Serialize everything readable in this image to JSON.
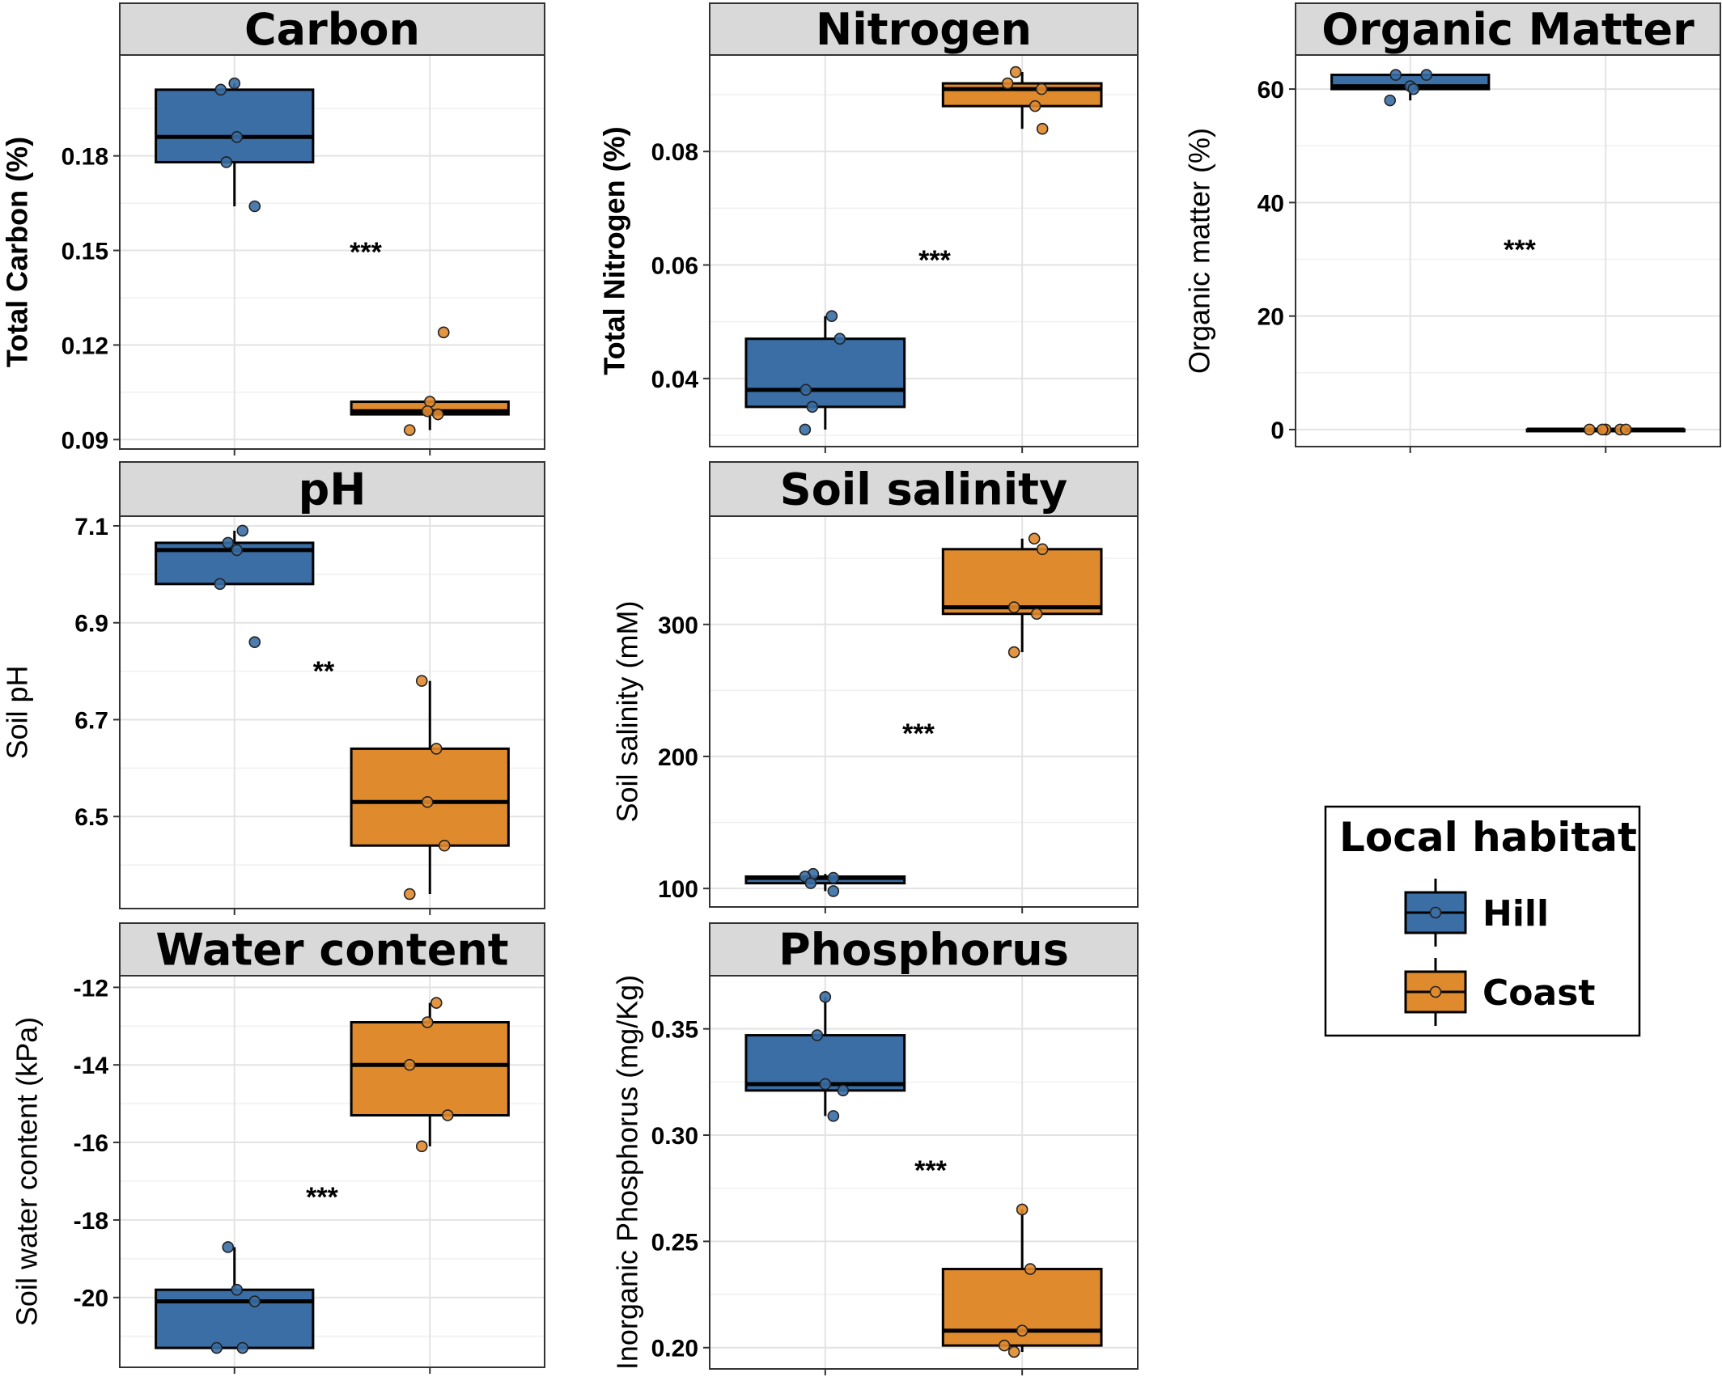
{
  "legend": {
    "title": "Local habitat",
    "items": [
      {
        "label": "Hill",
        "color": "#3A6EA5"
      },
      {
        "label": "Coast",
        "color": "#E08A2E"
      }
    ]
  },
  "chart_data": [
    {
      "type": "box",
      "title": "Carbon",
      "ylabel": "Total Carbon (%)",
      "ylabel_bold": true,
      "ylim": [
        0.087,
        0.212
      ],
      "yticks": [
        0.09,
        0.12,
        0.15,
        0.18
      ],
      "ytick_labels": [
        "0.09",
        "0.12",
        "0.15",
        "0.18"
      ],
      "significance": "***",
      "series": [
        {
          "name": "Hill",
          "color": "#3A6EA5",
          "whisker_low": 0.164,
          "q1": 0.178,
          "median": 0.186,
          "q3": 0.201,
          "whisker_high": 0.203,
          "points": [
            0.201,
            0.203,
            0.186,
            0.178,
            0.164
          ]
        },
        {
          "name": "Coast",
          "color": "#E08A2E",
          "whisker_low": 0.093,
          "q1": 0.098,
          "median": 0.099,
          "q3": 0.102,
          "whisker_high": 0.102,
          "points": [
            0.124,
            0.102,
            0.099,
            0.098,
            0.093
          ]
        }
      ]
    },
    {
      "type": "box",
      "title": "Nitrogen",
      "ylabel": "Total Nitrogen (%)",
      "ylabel_bold": true,
      "ylim": [
        0.028,
        0.097
      ],
      "yticks": [
        0.04,
        0.06,
        0.08
      ],
      "ytick_labels": [
        "0.04",
        "0.06",
        "0.08"
      ],
      "significance": "***",
      "series": [
        {
          "name": "Hill",
          "color": "#3A6EA5",
          "whisker_low": 0.031,
          "q1": 0.035,
          "median": 0.038,
          "q3": 0.047,
          "whisker_high": 0.051,
          "points": [
            0.051,
            0.047,
            0.038,
            0.035,
            0.031
          ]
        },
        {
          "name": "Coast",
          "color": "#E08A2E",
          "whisker_low": 0.084,
          "q1": 0.088,
          "median": 0.091,
          "q3": 0.092,
          "whisker_high": 0.094,
          "points": [
            0.094,
            0.092,
            0.091,
            0.088,
            0.084
          ]
        }
      ]
    },
    {
      "type": "box",
      "title": "Organic Matter",
      "ylabel": "Organic matter (%)",
      "ylabel_bold": false,
      "ylim": [
        -3,
        66
      ],
      "yticks": [
        0,
        20,
        40,
        60
      ],
      "ytick_labels": [
        "0",
        "20",
        "40",
        "60"
      ],
      "significance": "***",
      "series": [
        {
          "name": "Hill",
          "color": "#3A6EA5",
          "whisker_low": 58,
          "q1": 60,
          "median": 60.5,
          "q3": 62.5,
          "whisker_high": 62.5,
          "points": [
            62.5,
            62.5,
            60.5,
            60,
            58
          ]
        },
        {
          "name": "Coast",
          "color": "#E08A2E",
          "whisker_low": 0,
          "q1": 0,
          "median": 0,
          "q3": 0,
          "whisker_high": 0,
          "points": [
            0,
            0,
            0,
            0,
            0
          ]
        }
      ]
    },
    {
      "type": "box",
      "title": "pH",
      "ylabel": "Soil pH",
      "ylabel_bold": false,
      "ylim": [
        6.31,
        7.12
      ],
      "yticks": [
        6.5,
        6.7,
        6.9,
        7.1
      ],
      "ytick_labels": [
        "6.5",
        "6.7",
        "6.9",
        "7.1"
      ],
      "significance": "**",
      "series": [
        {
          "name": "Hill",
          "color": "#3A6EA5",
          "whisker_low": 6.98,
          "q1": 6.98,
          "median": 7.05,
          "q3": 7.065,
          "whisker_high": 7.09,
          "points": [
            7.09,
            7.065,
            7.05,
            6.98,
            6.86
          ]
        },
        {
          "name": "Coast",
          "color": "#E08A2E",
          "whisker_low": 6.34,
          "q1": 6.44,
          "median": 6.53,
          "q3": 6.64,
          "whisker_high": 6.78,
          "points": [
            6.78,
            6.64,
            6.53,
            6.44,
            6.34
          ]
        }
      ]
    },
    {
      "type": "box",
      "title": "Soil salinity",
      "ylabel": "Soil salinity (mM)",
      "ylabel_bold": false,
      "ylim": [
        86,
        382
      ],
      "yticks": [
        100,
        200,
        300
      ],
      "ytick_labels": [
        "100",
        "200",
        "300"
      ],
      "significance": "***",
      "series": [
        {
          "name": "Hill",
          "color": "#3A6EA5",
          "whisker_low": 98,
          "q1": 104,
          "median": 108,
          "q3": 109,
          "whisker_high": 111,
          "points": [
            111,
            109,
            108,
            104,
            98
          ]
        },
        {
          "name": "Coast",
          "color": "#E08A2E",
          "whisker_low": 279,
          "q1": 308,
          "median": 313,
          "q3": 357,
          "whisker_high": 365,
          "points": [
            365,
            357,
            313,
            308,
            279
          ]
        }
      ]
    },
    {
      "type": "box",
      "title": "Water content",
      "ylabel": "Soil water content (kPa)",
      "ylabel_bold": false,
      "ylim": [
        -21.8,
        -11.7
      ],
      "yticks": [
        -20,
        -18,
        -16,
        -14,
        -12
      ],
      "ytick_labels": [
        "-20",
        "-18",
        "-16",
        "-14",
        "-12"
      ],
      "significance": "***",
      "series": [
        {
          "name": "Hill",
          "color": "#3A6EA5",
          "whisker_low": -21.3,
          "q1": -21.3,
          "median": -20.1,
          "q3": -19.8,
          "whisker_high": -18.7,
          "points": [
            -18.7,
            -19.8,
            -20.1,
            -21.3,
            -21.3
          ]
        },
        {
          "name": "Coast",
          "color": "#E08A2E",
          "whisker_low": -16.1,
          "q1": -15.3,
          "median": -14.0,
          "q3": -12.9,
          "whisker_high": -12.4,
          "points": [
            -12.4,
            -12.9,
            -14.0,
            -15.3,
            -16.1
          ]
        }
      ]
    },
    {
      "type": "box",
      "title": "Phosphorus",
      "ylabel": "Inorganic Phosphorus (mg/Kg)",
      "ylabel_bold": false,
      "ylim": [
        0.19,
        0.375
      ],
      "yticks": [
        0.2,
        0.25,
        0.3,
        0.35
      ],
      "ytick_labels": [
        "0.20",
        "0.25",
        "0.30",
        "0.35"
      ],
      "significance": "***",
      "series": [
        {
          "name": "Hill",
          "color": "#3A6EA5",
          "whisker_low": 0.309,
          "q1": 0.321,
          "median": 0.324,
          "q3": 0.347,
          "whisker_high": 0.365,
          "points": [
            0.365,
            0.347,
            0.324,
            0.321,
            0.309
          ]
        },
        {
          "name": "Coast",
          "color": "#E08A2E",
          "whisker_low": 0.198,
          "q1": 0.201,
          "median": 0.208,
          "q3": 0.237,
          "whisker_high": 0.265,
          "points": [
            0.265,
            0.237,
            0.208,
            0.201,
            0.198
          ]
        }
      ]
    }
  ]
}
